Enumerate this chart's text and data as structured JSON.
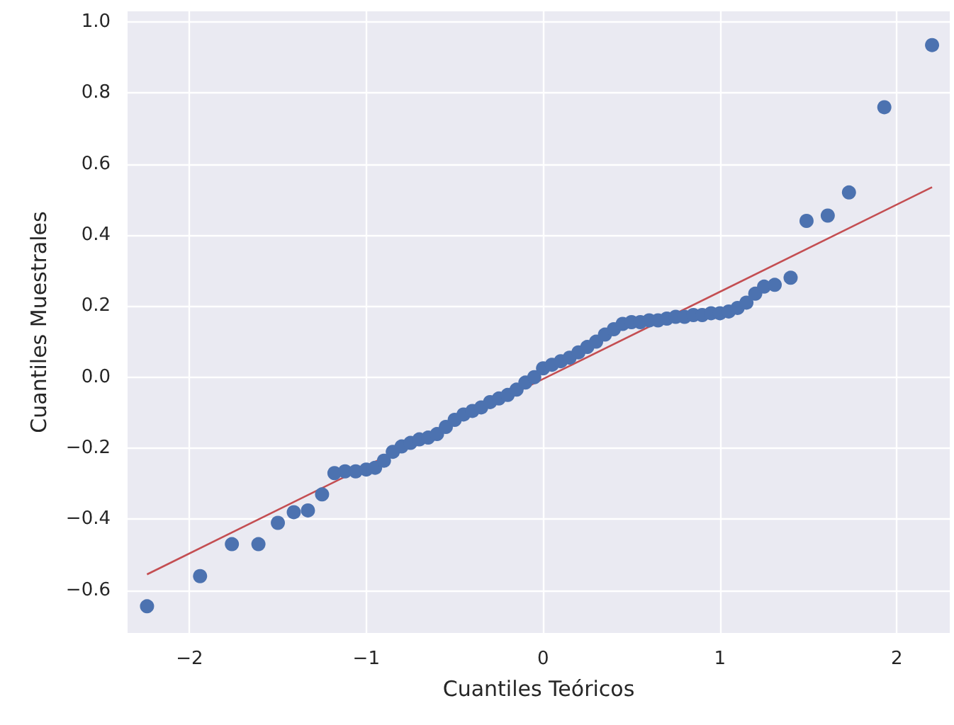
{
  "chart_data": {
    "type": "scatter",
    "xlabel": "Cuantiles Teóricos",
    "ylabel": "Cuantiles Muestrales",
    "xlim": [
      -2.35,
      2.3
    ],
    "ylim": [
      -0.72,
      1.03
    ],
    "xticks": [
      {
        "value": -2,
        "label": "−2"
      },
      {
        "value": -1,
        "label": "−1"
      },
      0,
      1,
      2
    ],
    "yticks": [
      {
        "value": -0.6,
        "label": "−0.6"
      },
      {
        "value": -0.4,
        "label": "−0.4"
      },
      {
        "value": -0.2,
        "label": "−0.2"
      },
      {
        "value": 0,
        "label": "0.0"
      },
      0.2,
      0.4,
      0.6,
      0.8,
      {
        "value": 1,
        "label": "1.0"
      }
    ],
    "grid": true,
    "series": [
      {
        "marker": "circle",
        "color": "#4c72b0",
        "x": [
          -2.24,
          -1.94,
          -1.76,
          -1.61,
          -1.5,
          -1.41,
          -1.33,
          -1.25,
          -1.18,
          -1.12,
          -1.06,
          -1.0,
          -0.95,
          -0.9,
          -0.85,
          -0.8,
          -0.75,
          -0.7,
          -0.65,
          -0.6,
          -0.55,
          -0.5,
          -0.45,
          -0.4,
          -0.35,
          -0.3,
          -0.25,
          -0.2,
          -0.15,
          -0.1,
          -0.05,
          0.0,
          0.05,
          0.1,
          0.15,
          0.2,
          0.25,
          0.3,
          0.35,
          0.4,
          0.45,
          0.5,
          0.55,
          0.6,
          0.65,
          0.7,
          0.75,
          0.8,
          0.85,
          0.9,
          0.95,
          1.0,
          1.05,
          1.1,
          1.15,
          1.2,
          1.25,
          1.31,
          1.4,
          1.49,
          1.61,
          1.73,
          1.93,
          2.2
        ],
        "values": [
          -0.645,
          -0.56,
          -0.47,
          -0.47,
          -0.41,
          -0.38,
          -0.375,
          -0.33,
          -0.27,
          -0.265,
          -0.265,
          -0.26,
          -0.255,
          -0.235,
          -0.21,
          -0.195,
          -0.185,
          -0.175,
          -0.17,
          -0.16,
          -0.14,
          -0.12,
          -0.105,
          -0.095,
          -0.085,
          -0.07,
          -0.06,
          -0.05,
          -0.035,
          -0.015,
          0.0,
          0.025,
          0.035,
          0.045,
          0.055,
          0.07,
          0.085,
          0.1,
          0.12,
          0.135,
          0.15,
          0.155,
          0.155,
          0.16,
          0.16,
          0.165,
          0.17,
          0.17,
          0.175,
          0.175,
          0.18,
          0.18,
          0.185,
          0.195,
          0.21,
          0.235,
          0.255,
          0.26,
          0.28,
          0.44,
          0.455,
          0.52,
          0.76,
          0.935
        ]
      },
      {
        "type": "line",
        "marker": "none",
        "line_style": "solid",
        "color": "#c44e52",
        "x": [
          -2.24,
          2.2
        ],
        "values": [
          -0.555,
          0.535
        ]
      }
    ]
  }
}
